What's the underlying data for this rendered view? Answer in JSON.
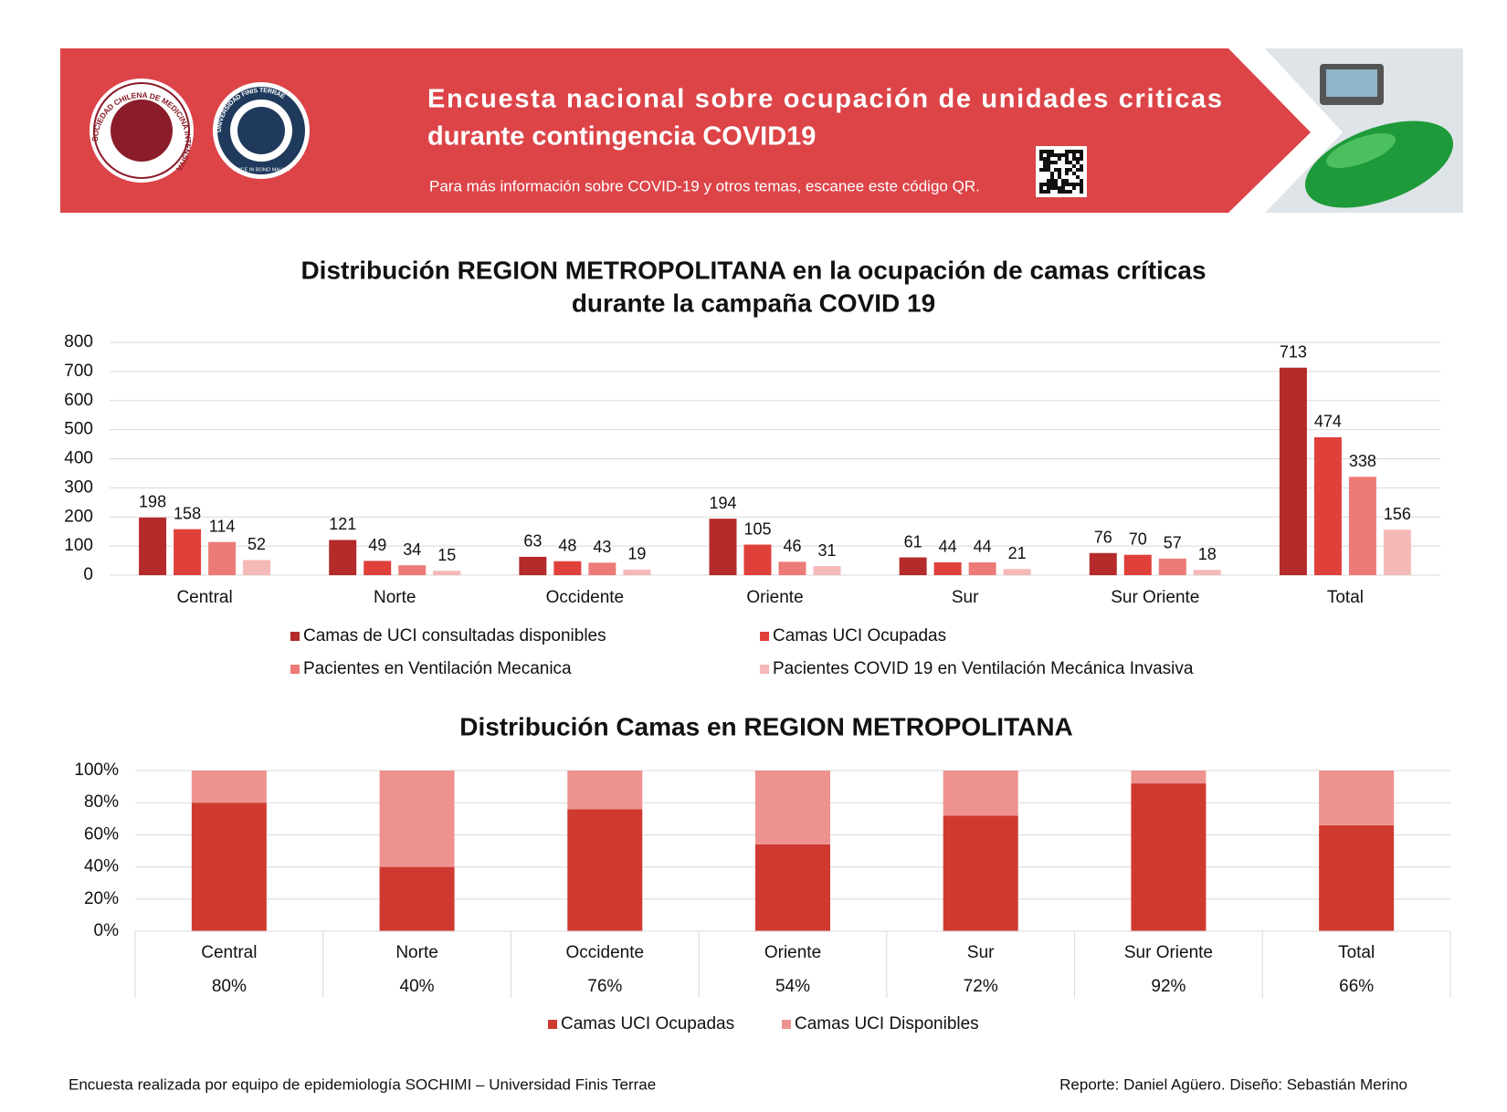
{
  "header": {
    "title_line1": "Encuesta nacional sobre ocupación de unidades criticas",
    "title_line2": "durante contingencia COVID19",
    "subtitle": "Para más información sobre COVID-19 y otros temas, escanee este código QR.",
    "logo1_text": "SOCIEDAD CHILENA DE MEDICINA INTENSIVA",
    "logo2_text": "UNIVERSIDAD FINIS TERRAE",
    "logo2_motto": "VINCE IN BONO MALUM"
  },
  "chart_data": [
    {
      "type": "bar",
      "title": [
        "Distribución REGION METROPOLITANA en la ocupación de camas críticas",
        "durante la campaña COVID 19"
      ],
      "categories": [
        "Central",
        "Norte",
        "Occidente",
        "Oriente",
        "Sur",
        "Sur Oriente",
        "Total"
      ],
      "series": [
        {
          "name": "Camas de UCI consultadas disponibles",
          "color": "#b52a2a",
          "values": [
            198,
            121,
            63,
            194,
            61,
            76,
            713
          ]
        },
        {
          "name": "Camas UCI Ocupadas",
          "color": "#e0403a",
          "values": [
            158,
            49,
            48,
            105,
            44,
            70,
            474
          ]
        },
        {
          "name": "Pacientes en Ventilación Mecanica",
          "color": "#ec7b78",
          "values": [
            114,
            34,
            43,
            46,
            44,
            57,
            338
          ]
        },
        {
          "name": "Pacientes COVID 19 en Ventilación Mecánica Invasiva",
          "color": "#f5b9b8",
          "values": [
            52,
            15,
            19,
            31,
            21,
            18,
            156
          ]
        }
      ],
      "ylim": [
        0,
        800
      ],
      "yticks": [
        0,
        100,
        200,
        300,
        400,
        500,
        600,
        700,
        800
      ],
      "grid": true
    },
    {
      "type": "stacked_bar",
      "title": "Distribución Camas en REGION METROPOLITANA",
      "categories": [
        "Central",
        "Norte",
        "Occidente",
        "Oriente",
        "Sur",
        "Sur Oriente",
        "Total"
      ],
      "series": [
        {
          "name": "Camas UCI Ocupadas",
          "color": "#cf3a30",
          "values": [
            80,
            40,
            76,
            54,
            72,
            92,
            66
          ],
          "value_labels": [
            "80%",
            "40%",
            "76%",
            "54%",
            "72%",
            "92%",
            "66%"
          ]
        },
        {
          "name": "Camas UCI Disponibles",
          "color": "#ee9290",
          "values": [
            20,
            60,
            24,
            46,
            28,
            8,
            34
          ]
        }
      ],
      "ylim": [
        0,
        100
      ],
      "yticks": [
        {
          "value": 0,
          "label": "0%"
        },
        {
          "value": 20,
          "label": "20%"
        },
        {
          "value": 40,
          "label": "40%"
        },
        {
          "value": 60,
          "label": "60%"
        },
        {
          "value": 80,
          "label": "80%"
        },
        {
          "value": 100,
          "label": "100%"
        }
      ],
      "grid": true
    }
  ],
  "footer": {
    "left": "Encuesta realizada por equipo de epidemiología SOCHIMI – Universidad Finis Terrae",
    "right": "Reporte: Daniel Agüero. Diseño: Sebastián Merino"
  }
}
